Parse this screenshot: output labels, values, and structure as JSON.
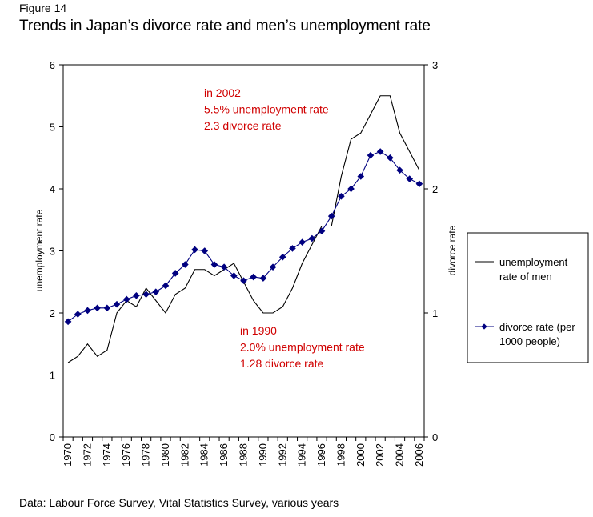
{
  "figure_label": "Figure 14",
  "title": "Trends in Japan’s divorce rate and men’s unemployment rate",
  "source": "Data: Labour Force Survey, Vital Statistics Survey, various years",
  "chart_data": {
    "type": "line",
    "x": [
      1970,
      1971,
      1972,
      1973,
      1974,
      1975,
      1976,
      1977,
      1978,
      1979,
      1980,
      1981,
      1982,
      1983,
      1984,
      1985,
      1986,
      1987,
      1988,
      1989,
      1990,
      1991,
      1992,
      1993,
      1994,
      1995,
      1996,
      1997,
      1998,
      1999,
      2000,
      2001,
      2002,
      2003,
      2004,
      2005,
      2006
    ],
    "x_tick_labels": [
      "1970",
      "1972",
      "1974",
      "1976",
      "1978",
      "1980",
      "1982",
      "1984",
      "1986",
      "1988",
      "1990",
      "1992",
      "1994",
      "1996",
      "1998",
      "2000",
      "2002",
      "2004",
      "2006"
    ],
    "y_left": {
      "label": "unemployment rate",
      "range": [
        0,
        6
      ],
      "ticks": [
        "0",
        "1",
        "2",
        "3",
        "4",
        "5",
        "6"
      ]
    },
    "y_right": {
      "label": "divorce rate",
      "range": [
        0,
        3
      ],
      "ticks": [
        "0",
        "1",
        "2",
        "3"
      ]
    },
    "grid": false,
    "legend_position": "right",
    "series": [
      {
        "name": "unemployment rate of men",
        "legend_lines": [
          "unemployment",
          "rate of men"
        ],
        "axis": "left",
        "color": "#000000",
        "marker": "none",
        "values": [
          1.2,
          1.3,
          1.5,
          1.3,
          1.4,
          2.0,
          2.2,
          2.1,
          2.4,
          2.2,
          2.0,
          2.3,
          2.4,
          2.7,
          2.7,
          2.6,
          2.7,
          2.8,
          2.5,
          2.2,
          2.0,
          2.0,
          2.1,
          2.4,
          2.8,
          3.1,
          3.4,
          3.4,
          4.2,
          4.8,
          4.9,
          5.2,
          5.5,
          5.5,
          4.9,
          4.6,
          4.3
        ]
      },
      {
        "name": "divorce rate (per 1000 people)",
        "legend_lines": [
          "divorce rate (per",
          "1000 people)"
        ],
        "axis": "right",
        "color": "#000080",
        "marker": "diamond",
        "values": [
          0.93,
          0.99,
          1.02,
          1.04,
          1.04,
          1.07,
          1.11,
          1.14,
          1.15,
          1.17,
          1.22,
          1.32,
          1.39,
          1.51,
          1.5,
          1.39,
          1.37,
          1.3,
          1.26,
          1.29,
          1.28,
          1.37,
          1.45,
          1.52,
          1.57,
          1.6,
          1.66,
          1.78,
          1.94,
          2.0,
          2.1,
          2.27,
          2.3,
          2.25,
          2.15,
          2.08,
          2.04
        ]
      }
    ],
    "annotations": [
      {
        "lines": [
          "in 2002",
          "5.5% unemployment rate",
          "2.3 divorce rate"
        ],
        "color": "#d00000"
      },
      {
        "lines": [
          "in 1990",
          "2.0% unemployment rate",
          "1.28 divorce rate"
        ],
        "color": "#d00000"
      }
    ]
  }
}
